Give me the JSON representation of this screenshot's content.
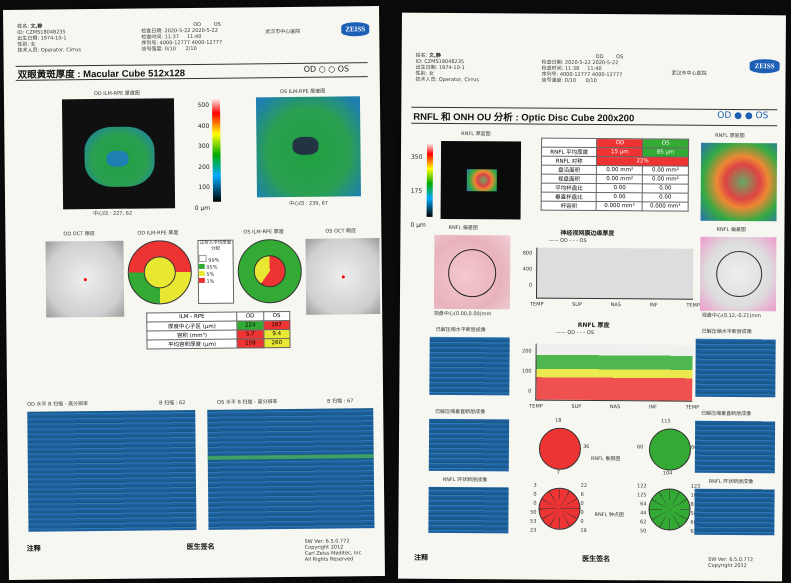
{
  "left": {
    "header": {
      "name_label": "姓名:",
      "name": "文,静",
      "id_label": "ID:",
      "id": "CZMS18048235",
      "dob_label": "出生日期:",
      "dob": "1974-10-1",
      "sex_label": "性别:",
      "sex": "女",
      "tech_label": "技术人员:",
      "tech": "Operator, Cirrus",
      "od": "OD",
      "os": "OS",
      "exam_date_label": "检查日期:",
      "exam_date_od": "2020-5-22",
      "exam_date_os": "2020-5-22",
      "exam_time_label": "检查时间:",
      "exam_time_od": "11:37",
      "exam_time_os": "11:40",
      "serial_label": "序列号:",
      "serial_od": "4000-12777",
      "serial_os": "4000-12777",
      "signal_label": "信号强度:",
      "signal_od": "0/10",
      "signal_os": "2/10",
      "hospital": "武汉市中心医院",
      "brand": "ZEISS"
    },
    "title": "双眼黄斑厚度 : Macular Cube 512x128",
    "od_os": "OD ○ ○ OS",
    "od_map_label": "OD ILM-RPE 厚度图",
    "os_map_label": "OS ILM-RPE 厚度图",
    "scale": [
      "500",
      "400",
      "300",
      "200",
      "100",
      "0 μm"
    ],
    "od_center": "中心凹 : 227, 62",
    "os_center": "中心凹 : 239, 67",
    "od_fundus_label": "OD OCT 眼底",
    "od_sector_label": "OD ILM-RPE 厚度",
    "os_sector_label": "OS ILM-RPE 厚度",
    "os_fundus_label": "OS OCT 眼底",
    "legend": {
      "title": "正常人平均厚度分配",
      "items": [
        "99%",
        "95%",
        "5%",
        "1%"
      ]
    },
    "table": {
      "head": [
        "ILM - RPE",
        "OD",
        "OS"
      ],
      "rows": [
        [
          "厚度中心子区 (μm)",
          "224",
          "167"
        ],
        [
          "容积 (mm³)",
          "5.7",
          "9.4"
        ],
        [
          "平均容积厚度 (μm)",
          "159",
          "260"
        ]
      ]
    },
    "od_bscan_label": "OD 水平 B 扫描 - 高分辨率",
    "od_bscan_num": "B 扫描 : 62",
    "os_bscan_label": "OS 水平 B 扫描 - 高分辨率",
    "os_bscan_num": "B 扫描 : 67",
    "comments": "注释",
    "doctor_sign": "医生签名",
    "footer": [
      "SW Ver: 6.5.0.772",
      "Copyright 2012",
      "Carl Zeiss Meditec, Inc",
      "All Rights Reserved"
    ]
  },
  "right": {
    "header": {
      "name_label": "姓名:",
      "name": "文,静",
      "id_label": "ID:",
      "id": "CZMS18048235",
      "dob_label": "出生日期:",
      "dob": "1974-10-1",
      "sex_label": "性别:",
      "sex": "女",
      "tech_label": "技术人员:",
      "tech": "Operator, Cirrus",
      "od": "OD",
      "os": "OS",
      "exam_date_label": "检查日期:",
      "exam_date_od": "2020-5-22",
      "exam_date_os": "2020-5-22",
      "exam_time_label": "检查时间:",
      "exam_time_od": "11:38",
      "exam_time_os": "11:40",
      "serial_label": "序列号:",
      "serial_od": "4000-12777",
      "serial_os": "4000-12777",
      "signal_label": "信号强度:",
      "signal_od": "0/10",
      "signal_os": "0/10",
      "hospital": "武汉市中心医院",
      "brand": "ZEISS"
    },
    "title": "RNFL 和 ONH OU 分析 : Optic Disc Cube 200x200",
    "od_os": "OD ● ● OS",
    "rnfl_thick_label": "RNFL 厚度图",
    "rnfl_dev_label": "RNFL 偏差图",
    "scale": [
      "350",
      "175",
      "0 μm"
    ],
    "table": {
      "head": [
        "",
        "OD",
        "OS"
      ],
      "rows": [
        [
          "RNFL 平均厚度",
          "15 μm",
          "85 μm"
        ],
        [
          "RNFL 对称",
          "22%",
          ""
        ],
        [
          "盘沿面积",
          "0.00 mm²",
          "0.00 mm²"
        ],
        [
          "视盘面积",
          "0.00 mm²",
          "0.00 mm²"
        ],
        [
          "平均杯盘比",
          "0.00",
          "0.00"
        ],
        [
          "垂直杯盘比",
          "0.00",
          "0.00"
        ],
        [
          "杯容积",
          "0.000 mm³",
          "0.000 mm³"
        ]
      ]
    },
    "neuro_title": "神经视网膜边缘厚度",
    "neuro_legend": "—— OD - - - OS",
    "axis": [
      "TEMP",
      "SUP",
      "NAS",
      "INF",
      "TEMP"
    ],
    "neuro_y": [
      "800",
      "400",
      "0"
    ],
    "od_disc_center": "视盘中心(0.00,0.00)mm",
    "os_disc_center": "视盘中心(0.12,-0.21)mm",
    "rnfl_profile_title": "RNFL 厚度",
    "rnfl_y": [
      "200",
      "100",
      "0"
    ],
    "rnfl_legend": "—— OD - - - OS",
    "extracted_h": "已解压缩水平断层成像",
    "extracted_v": "已解压缩垂直断层成像",
    "rnfl_circle": "RNFL 环状断层成像",
    "quadrant_label": "RNFL 象限图",
    "clock_label": "RNFL 钟点图",
    "quadrants_od": {
      "top": "18",
      "left": "",
      "right": "36",
      "bottom": "7"
    },
    "quadrants_os": {
      "top": "115",
      "left": "60",
      "right": "60",
      "bottom": "104"
    },
    "clock_od": [
      "3",
      "0",
      "0",
      "50",
      "53",
      "23",
      "22",
      "6",
      "0",
      "0",
      "0",
      "19"
    ],
    "clock_os": [
      "122",
      "125",
      "64",
      "44",
      "62",
      "50",
      "123",
      "102",
      "87",
      "58",
      "60",
      "62"
    ],
    "comments": "注释",
    "doctor_sign": "医生签名",
    "footer": [
      "SW Ver: 6.5.0.772",
      "Copyright 2012"
    ]
  }
}
